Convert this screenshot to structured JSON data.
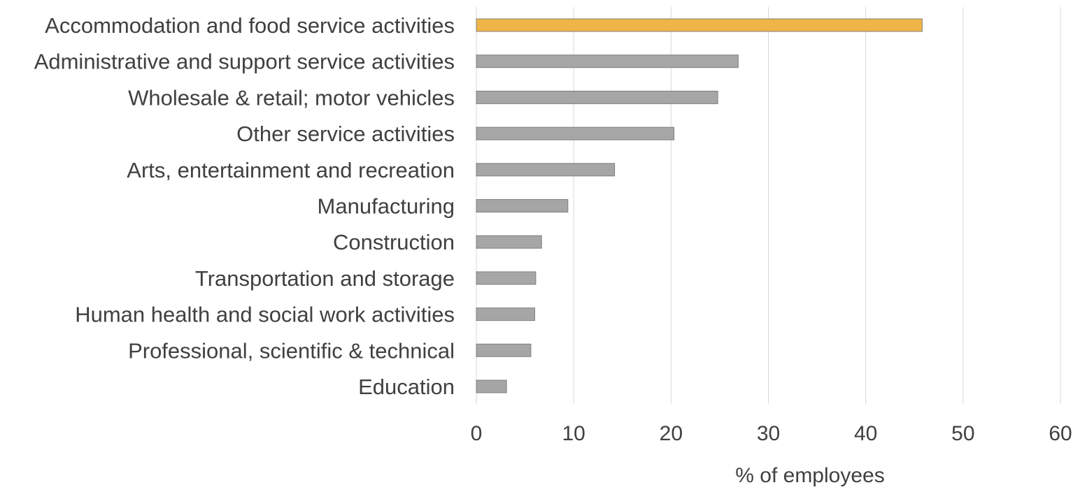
{
  "chart_data": {
    "type": "bar",
    "orientation": "horizontal",
    "title": "",
    "xlabel": "% of employees",
    "ylabel": "",
    "xlim": [
      0,
      60
    ],
    "x_ticks": [
      0,
      10,
      20,
      30,
      40,
      50,
      60
    ],
    "grid": true,
    "legend": "none",
    "categories": [
      "Accommodation and food service activities",
      "Administrative and support service activities",
      "Wholesale & retail; motor vehicles",
      "Other service activities",
      "Arts, entertainment and recreation",
      "Manufacturing",
      "Construction",
      "Transportation and storage",
      "Human health and social work activities",
      "Professional, scientific & technical",
      "Education"
    ],
    "values": [
      45.8,
      26.9,
      24.8,
      20.3,
      14.2,
      9.4,
      6.7,
      6.1,
      6.0,
      5.6,
      3.1
    ],
    "colors": {
      "highlight": "#f0b548",
      "default": "#a6a6a6",
      "bar_border": "#7f7f7f",
      "text": "#404040",
      "grid": "#d9d9d9"
    },
    "highlight_index": 0
  }
}
